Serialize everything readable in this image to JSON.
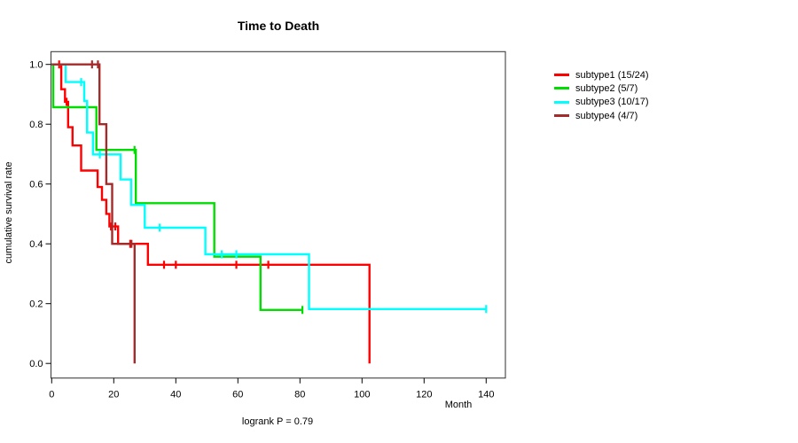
{
  "chart_data": {
    "type": "line",
    "subtype": "kaplan-meier-step",
    "title": "Time to Death",
    "xlabel": "Month",
    "ylabel": "cumulative survival rate",
    "annotation": "logrank P = 0.79",
    "x_ticks": [
      0,
      20,
      40,
      60,
      80,
      100,
      120,
      140
    ],
    "y_tick_labels": [
      "0.0",
      "0.2",
      "0.4",
      "0.6",
      "0.8",
      "1.0"
    ],
    "xlim": [
      0,
      146
    ],
    "ylim": [
      0,
      1
    ],
    "grid": false,
    "legend_position": "right-outside",
    "series": [
      {
        "name": "subtype1 (15/24)",
        "color": "#ff0000",
        "steps": [
          [
            0,
            1.0
          ],
          [
            3.1,
            0.917
          ],
          [
            4.3,
            0.875
          ],
          [
            5.3,
            0.79
          ],
          [
            6.7,
            0.729
          ],
          [
            9.5,
            0.645
          ],
          [
            14.8,
            0.59
          ],
          [
            16.2,
            0.547
          ],
          [
            17.6,
            0.5
          ],
          [
            18.6,
            0.458
          ],
          [
            21.4,
            0.4
          ],
          [
            31,
            0.33
          ],
          [
            102.4,
            0
          ]
        ],
        "end": 102.4,
        "censors": [
          [
            2.4,
            1.0
          ],
          [
            4.8,
            0.875
          ],
          [
            19.1,
            0.458
          ],
          [
            20.5,
            0.458
          ],
          [
            25.3,
            0.4
          ],
          [
            36.2,
            0.33
          ],
          [
            40,
            0.33
          ],
          [
            59.5,
            0.33
          ],
          [
            69.8,
            0.33
          ]
        ]
      },
      {
        "name": "subtype2 (5/7)",
        "color": "#00dd00",
        "steps": [
          [
            0,
            1.0
          ],
          [
            0.5,
            0.857
          ],
          [
            14.4,
            0.714
          ],
          [
            27.1,
            0.536
          ],
          [
            52.4,
            0.357
          ],
          [
            67.3,
            0.179
          ]
        ],
        "end": 80.8,
        "censors": [
          [
            26.7,
            0.714
          ],
          [
            80.8,
            0.179
          ]
        ]
      },
      {
        "name": "subtype3 (10/17)",
        "color": "#00ffff",
        "steps": [
          [
            0,
            1.0
          ],
          [
            4.5,
            0.941
          ],
          [
            10.5,
            0.878
          ],
          [
            11.4,
            0.772
          ],
          [
            13.3,
            0.699
          ],
          [
            22.2,
            0.615
          ],
          [
            25.6,
            0.53
          ],
          [
            30,
            0.454
          ],
          [
            49.5,
            0.365
          ],
          [
            82.9,
            0.182
          ]
        ],
        "end": 140,
        "censors": [
          [
            9.5,
            0.941
          ],
          [
            15.5,
            0.699
          ],
          [
            34.8,
            0.454
          ],
          [
            54.8,
            0.365
          ],
          [
            59.5,
            0.365
          ],
          [
            140,
            0.182
          ]
        ]
      },
      {
        "name": "subtype4 (4/7)",
        "color": "#a52a2a",
        "steps": [
          [
            0,
            1.0
          ],
          [
            15.4,
            0.8
          ],
          [
            17.6,
            0.6
          ],
          [
            19.5,
            0.4
          ],
          [
            26.7,
            0
          ]
        ],
        "end": 26.7,
        "censors": [
          [
            13,
            1.0
          ],
          [
            14.9,
            1.0
          ],
          [
            25.7,
            0.4
          ]
        ]
      }
    ]
  }
}
